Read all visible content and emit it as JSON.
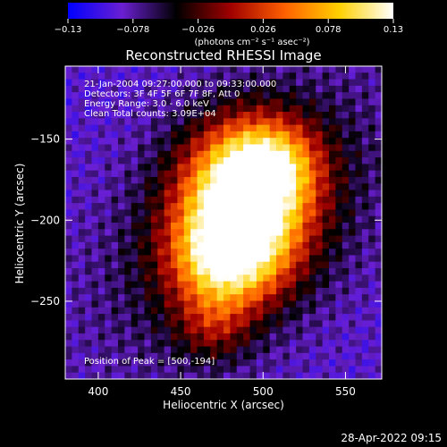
{
  "chart_data": {
    "type": "heatmap",
    "title": "Reconstructed RHESSI Image",
    "xlabel": "Heliocentric X (arcsec)",
    "ylabel": "Heliocentric Y (arcsec)",
    "xlim": [
      380,
      572
    ],
    "ylim": [
      -298,
      -105
    ],
    "x_ticks": [
      400,
      450,
      500,
      550
    ],
    "y_ticks": [
      -250,
      -200,
      -150
    ],
    "colorbar": {
      "range": [
        -0.13,
        0.13
      ],
      "tick_labels": [
        "-0.13",
        "-0.078",
        "-0.026",
        "0.026",
        "0.078",
        "0.13"
      ],
      "units_label": "(photons cm⁻² s⁻¹ asec⁻²)",
      "colormap": [
        "#0000ff",
        "#6a1fd2",
        "#000000",
        "#a00000",
        "#ff6000",
        "#ffd000",
        "#ffffff"
      ]
    },
    "annotations": [
      "21-Jan-2004 09:27:00.000 to 09:33:00.000",
      "Detectors: 3F 4F 5F 6F 7F 8F, Att 0",
      "Energy Range: 3.0 - 6.0 keV",
      "Clean    Total counts: 3.09E+04"
    ],
    "peak_label": "Position of Peak = [500,-194]",
    "peak": [
      500,
      -194
    ],
    "source_blobs": [
      {
        "x": 488,
        "y": -190,
        "sx": 26,
        "sy": 32,
        "amp": 0.12
      },
      {
        "x": 476,
        "y": -225,
        "sx": 22,
        "sy": 20,
        "amp": 0.06
      },
      {
        "x": 505,
        "y": -165,
        "sx": 20,
        "sy": 18,
        "amp": 0.05
      },
      {
        "x": 470,
        "y": -265,
        "sx": 16,
        "sy": 16,
        "amp": 0.03
      }
    ]
  },
  "timestamp": "28-Apr-2022 09:15"
}
